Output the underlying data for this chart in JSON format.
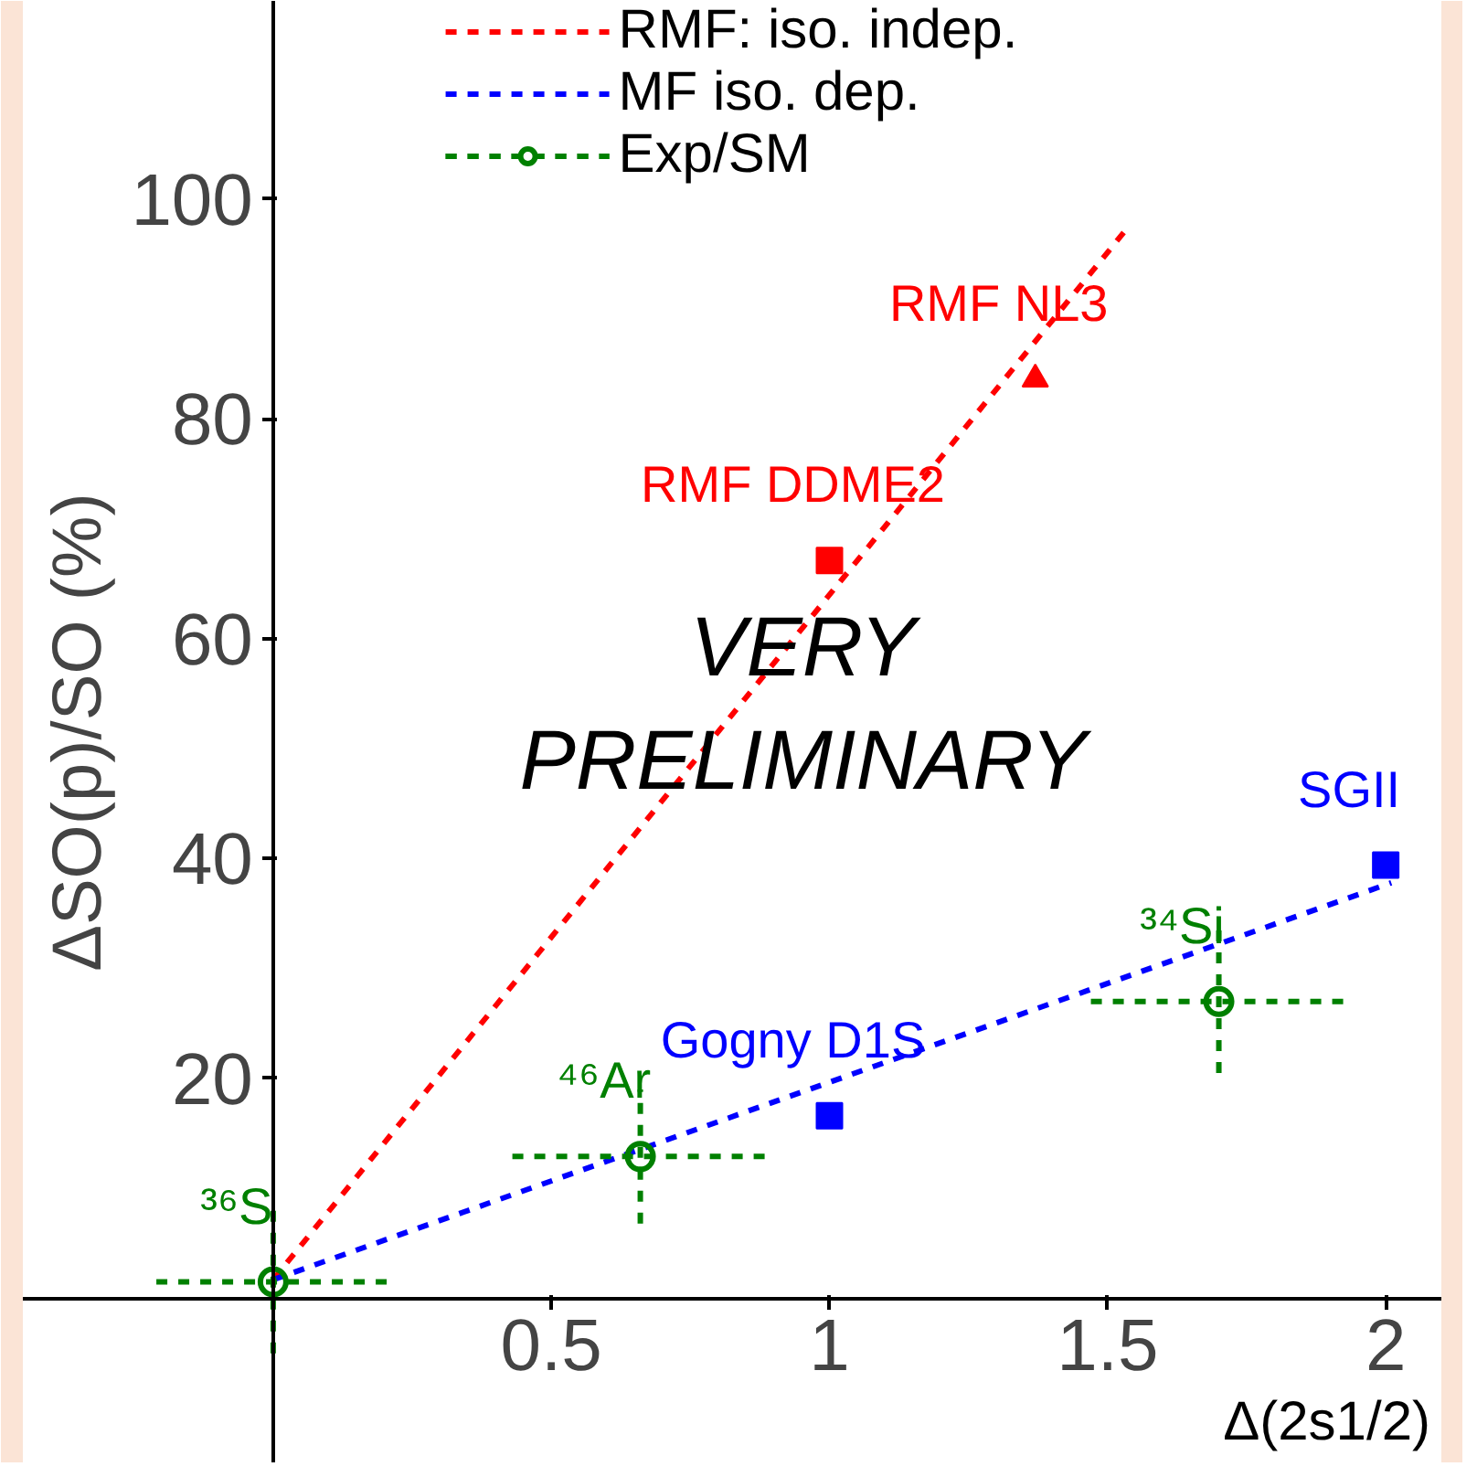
{
  "chart_data": {
    "type": "scatter",
    "xlabel": "Δ(2s1/2)",
    "ylabel": "ΔSO(p)/SO (%)",
    "xlim": [
      -0.45,
      2.1
    ],
    "ylim": [
      -15,
      118
    ],
    "xticks": [
      0.5,
      1,
      1.5,
      2
    ],
    "yticks": [
      20,
      40,
      60,
      80,
      100
    ],
    "grid": false,
    "legend": "top",
    "series": [
      {
        "name": "RMF: iso. indep.",
        "type": "line",
        "line_style": "dashed",
        "color": "#ff0000",
        "x": [
          0,
          1.53
        ],
        "values": [
          1.7,
          97
        ]
      },
      {
        "name": "MF iso. dep.",
        "type": "line",
        "line_style": "dashed",
        "color": "#0000ff",
        "x": [
          0,
          2.01
        ],
        "values": [
          1.7,
          37.8
        ]
      },
      {
        "name": "Exp/SM",
        "marker": "circle",
        "line_style": "dashed",
        "color": "#008000",
        "x": [
          0,
          0.66,
          1.7
        ],
        "values": [
          1.5,
          12.9,
          27
        ],
        "errors": [
          6.5,
          6.1,
          6.5
        ],
        "xerrors": [
          0.21,
          0.23,
          0.23
        ]
      },
      {
        "marker": "square",
        "color": "#ff0000",
        "x": [
          1.0
        ],
        "values": [
          67.1
        ]
      },
      {
        "marker": "triangle",
        "color": "#ff0000",
        "x": [
          1.37
        ],
        "values": [
          83.6
        ]
      },
      {
        "marker": "square",
        "color": "#0000ff",
        "x": [
          1.0,
          2.0
        ],
        "values": [
          16.6,
          39.4
        ]
      }
    ],
    "annotations": [
      {
        "text": "RMF NL3",
        "x": 1.37,
        "y": 83.6
      },
      {
        "text": "RMF DDME2",
        "x": 1.0,
        "y": 67.1
      },
      {
        "text": "Gogny D1S",
        "x": 1.0,
        "y": 16.6
      },
      {
        "text": "SGII",
        "x": 2.0,
        "y": 39.4
      },
      {
        "text": "³⁶S",
        "x": 0,
        "y": 1.5
      },
      {
        "text": "⁴⁶Ar",
        "x": 0.66,
        "y": 12.9
      },
      {
        "text": "³⁴Si",
        "x": 1.7,
        "y": 27
      },
      "VERY\nPRELIMINARY"
    ]
  }
}
